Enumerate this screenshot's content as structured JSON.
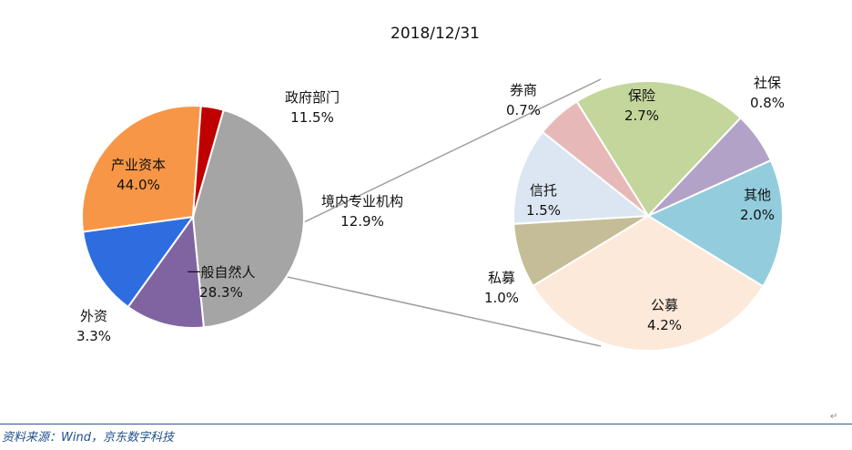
{
  "chart_data": [
    {
      "type": "pie",
      "title": "2018/12/31",
      "slices": [
        {
          "label": "产业资本",
          "pct": "44.0%",
          "value": 44.0,
          "color": "#a5a5a5"
        },
        {
          "label": "政府部门",
          "pct": "11.5%",
          "value": 11.5,
          "color": "#8064a2"
        },
        {
          "label": "境内专业机构",
          "pct": "12.9%",
          "value": 12.9,
          "color": "#2d6de0"
        },
        {
          "label": "一般自然人",
          "pct": "28.3%",
          "value": 28.3,
          "color": "#f79646"
        },
        {
          "label": "外资",
          "pct": "3.3%",
          "value": 3.3,
          "color": "#c00000"
        }
      ]
    },
    {
      "type": "pie",
      "slices": [
        {
          "label": "保险",
          "pct": "2.7%",
          "value": 2.7,
          "color": "#c3d69b"
        },
        {
          "label": "社保",
          "pct": "0.8%",
          "value": 0.8,
          "color": "#b3a2c7"
        },
        {
          "label": "其他",
          "pct": "2.0%",
          "value": 2.0,
          "color": "#93cddd"
        },
        {
          "label": "公募",
          "pct": "4.2%",
          "value": 4.2,
          "color": "#fde9d9"
        },
        {
          "label": "私募",
          "pct": "1.0%",
          "value": 1.0,
          "color": "#c4bd97"
        },
        {
          "label": "信托",
          "pct": "1.5%",
          "value": 1.5,
          "color": "#dce6f2"
        },
        {
          "label": "券商",
          "pct": "0.7%",
          "value": 0.7,
          "color": "#e6b9b8"
        }
      ]
    }
  ],
  "source": "资料来源：Wind，京东数字科技",
  "return_mark": "↵"
}
